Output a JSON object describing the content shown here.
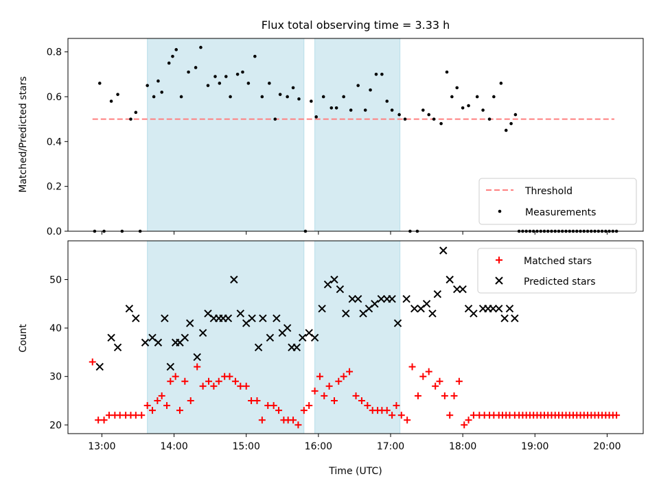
{
  "figure": {
    "title": "Flux total observing time = 3.33 h",
    "xlabel": "Time (UTC)",
    "x_ticks": [
      "13:00",
      "14:00",
      "15:00",
      "16:00",
      "17:00",
      "18:00",
      "19:00",
      "20:00"
    ]
  },
  "colors": {
    "shade": "#add8e6",
    "threshold": "#ff7f7f",
    "matched": "#ff0000",
    "predicted": "#000000",
    "measurements": "#000000"
  },
  "chart_data": [
    {
      "type": "scatter",
      "panel": "top",
      "ylabel": "Matched/Predicted stars",
      "xlim": [
        12.53,
        20.5
      ],
      "ylim": [
        0.0,
        0.86
      ],
      "y_ticks": [
        "0.0",
        "0.2",
        "0.4",
        "0.6",
        "0.8"
      ],
      "x_unit": "hours UTC",
      "shaded_intervals": [
        [
          13.63,
          15.8
        ],
        [
          15.95,
          17.13
        ]
      ],
      "legend": {
        "position": "lower-right",
        "entries": [
          "Threshold",
          "Measurements"
        ]
      },
      "threshold": {
        "name": "Threshold",
        "y": 0.5,
        "x_range": [
          12.87,
          20.1
        ]
      },
      "series": [
        {
          "name": "Measurements",
          "x": [
            12.9,
            12.97,
            13.03,
            13.13,
            13.22,
            13.28,
            13.4,
            13.47,
            13.53,
            13.63,
            13.72,
            13.78,
            13.83,
            13.93,
            13.98,
            14.03,
            14.1,
            14.2,
            14.3,
            14.37,
            14.47,
            14.57,
            14.63,
            14.72,
            14.78,
            14.88,
            14.95,
            15.03,
            15.12,
            15.22,
            15.32,
            15.4,
            15.47,
            15.57,
            15.65,
            15.73,
            15.82,
            15.9,
            15.97,
            16.07,
            16.18,
            16.25,
            16.35,
            16.45,
            16.55,
            16.65,
            16.72,
            16.8,
            16.88,
            16.95,
            17.02,
            17.12,
            17.2,
            17.27,
            17.37,
            17.45,
            17.53,
            17.6,
            17.7,
            17.78,
            17.85,
            17.92,
            18.0,
            18.08,
            18.2,
            18.28,
            18.37,
            18.43,
            18.53,
            18.6,
            18.67,
            18.73,
            18.78,
            18.83,
            18.88,
            18.93,
            18.98,
            19.03,
            19.08,
            19.13,
            19.18,
            19.23,
            19.28,
            19.33,
            19.38,
            19.43,
            19.48,
            19.53,
            19.58,
            19.63,
            19.68,
            19.73,
            19.78,
            19.83,
            19.88,
            19.93,
            19.98,
            20.03,
            20.08,
            20.13
          ],
          "y": [
            0.0,
            0.66,
            0.0,
            0.58,
            0.61,
            0.0,
            0.5,
            0.53,
            0.0,
            0.65,
            0.6,
            0.67,
            0.62,
            0.75,
            0.78,
            0.81,
            0.6,
            0.71,
            0.73,
            0.82,
            0.65,
            0.69,
            0.66,
            0.69,
            0.6,
            0.7,
            0.71,
            0.66,
            0.78,
            0.6,
            0.66,
            0.5,
            0.61,
            0.6,
            0.64,
            0.59,
            0.0,
            0.58,
            0.51,
            0.6,
            0.55,
            0.55,
            0.6,
            0.54,
            0.65,
            0.54,
            0.63,
            0.7,
            0.7,
            0.58,
            0.54,
            0.52,
            0.5,
            0.0,
            0.0,
            0.54,
            0.52,
            0.5,
            0.48,
            0.71,
            0.6,
            0.64,
            0.55,
            0.56,
            0.6,
            0.54,
            0.5,
            0.6,
            0.66,
            0.45,
            0.48,
            0.52,
            0.0,
            0.0,
            0.0,
            0.0,
            0.0,
            0.0,
            0.0,
            0.0,
            0.0,
            0.0,
            0.0,
            0.0,
            0.0,
            0.0,
            0.0,
            0.0,
            0.0,
            0.0,
            0.0,
            0.0,
            0.0,
            0.0,
            0.0,
            0.0,
            0.0,
            0.0,
            0.0,
            0.0
          ]
        }
      ]
    },
    {
      "type": "scatter",
      "panel": "bottom",
      "ylabel": "Count",
      "xlim": [
        12.53,
        20.5
      ],
      "ylim": [
        18.2,
        58.0
      ],
      "y_ticks": [
        "20",
        "30",
        "40",
        "50"
      ],
      "x_unit": "hours UTC",
      "shaded_intervals": [
        [
          13.63,
          15.8
        ],
        [
          15.95,
          17.13
        ]
      ],
      "legend": {
        "position": "top-right",
        "entries": [
          "Matched stars",
          "Predicted stars"
        ]
      },
      "series": [
        {
          "name": "Matched stars",
          "marker": "+",
          "x": [
            12.87,
            12.95,
            13.03,
            13.1,
            13.18,
            13.25,
            13.33,
            13.4,
            13.47,
            13.55,
            13.63,
            13.7,
            13.77,
            13.83,
            13.9,
            13.95,
            14.02,
            14.08,
            14.15,
            14.23,
            14.32,
            14.4,
            14.48,
            14.55,
            14.62,
            14.7,
            14.77,
            14.85,
            14.92,
            15.0,
            15.07,
            15.15,
            15.22,
            15.3,
            15.38,
            15.45,
            15.52,
            15.58,
            15.65,
            15.72,
            15.8,
            15.87,
            15.95,
            16.02,
            16.08,
            16.15,
            16.22,
            16.28,
            16.35,
            16.43,
            16.52,
            16.6,
            16.68,
            16.75,
            16.82,
            16.88,
            16.95,
            17.02,
            17.08,
            17.15,
            17.23,
            17.3,
            17.38,
            17.45,
            17.53,
            17.62,
            17.68,
            17.75,
            17.82,
            17.88,
            17.95,
            18.02,
            18.08,
            18.15,
            18.23,
            18.3,
            18.37,
            18.43,
            18.5,
            18.55,
            18.6,
            18.65,
            18.72,
            18.78,
            18.83,
            18.88,
            18.93,
            18.98,
            19.03,
            19.08,
            19.13,
            19.18,
            19.23,
            19.28,
            19.33,
            19.38,
            19.43,
            19.48,
            19.53,
            19.58,
            19.63,
            19.68,
            19.73,
            19.78,
            19.83,
            19.88,
            19.93,
            19.98,
            20.03,
            20.08,
            20.13
          ],
          "y": [
            33,
            21,
            21,
            22,
            22,
            22,
            22,
            22,
            22,
            22,
            24,
            23,
            25,
            26,
            24,
            29,
            30,
            23,
            29,
            25,
            32,
            28,
            29,
            28,
            29,
            30,
            30,
            29,
            28,
            28,
            25,
            25,
            21,
            24,
            24,
            23,
            21,
            21,
            21,
            20,
            23,
            24,
            27,
            30,
            26,
            28,
            25,
            29,
            30,
            31,
            26,
            25,
            24,
            23,
            23,
            23,
            23,
            22,
            24,
            22,
            21,
            32,
            26,
            30,
            31,
            28,
            29,
            26,
            22,
            26,
            29,
            20,
            21,
            22,
            22,
            22,
            22,
            22,
            22,
            22,
            22,
            22,
            22,
            22,
            22,
            22,
            22,
            22,
            22,
            22,
            22,
            22,
            22,
            22,
            22,
            22,
            22,
            22,
            22,
            22,
            22,
            22,
            22,
            22,
            22,
            22,
            22,
            22,
            22,
            22,
            22
          ]
        },
        {
          "name": "Predicted stars",
          "marker": "x",
          "x": [
            12.97,
            13.13,
            13.22,
            13.38,
            13.47,
            13.6,
            13.7,
            13.78,
            13.87,
            13.95,
            14.02,
            14.08,
            14.15,
            14.22,
            14.32,
            14.4,
            14.47,
            14.55,
            14.62,
            14.68,
            14.75,
            14.83,
            14.92,
            15.0,
            15.08,
            15.17,
            15.23,
            15.33,
            15.42,
            15.5,
            15.57,
            15.63,
            15.7,
            15.78,
            15.87,
            15.95,
            16.05,
            16.13,
            16.22,
            16.3,
            16.38,
            16.47,
            16.55,
            16.62,
            16.7,
            16.78,
            16.87,
            16.95,
            17.02,
            17.1,
            17.22,
            17.33,
            17.42,
            17.5,
            17.58,
            17.65,
            17.73,
            17.82,
            17.92,
            18.0,
            18.08,
            18.15,
            18.28,
            18.35,
            18.42,
            18.5,
            18.58,
            18.65,
            18.72
          ],
          "y": [
            32,
            38,
            36,
            44,
            42,
            37,
            38,
            37,
            42,
            32,
            37,
            37,
            38,
            41,
            34,
            39,
            43,
            42,
            42,
            42,
            42,
            50,
            43,
            41,
            42,
            36,
            42,
            38,
            42,
            39,
            40,
            36,
            36,
            38,
            39,
            38,
            44,
            49,
            50,
            48,
            43,
            46,
            46,
            43,
            44,
            45,
            46,
            46,
            46,
            41,
            46,
            44,
            44,
            45,
            43,
            47,
            56,
            50,
            48,
            48,
            44,
            43,
            44,
            44,
            44,
            44,
            42,
            44,
            42
          ]
        }
      ]
    }
  ]
}
